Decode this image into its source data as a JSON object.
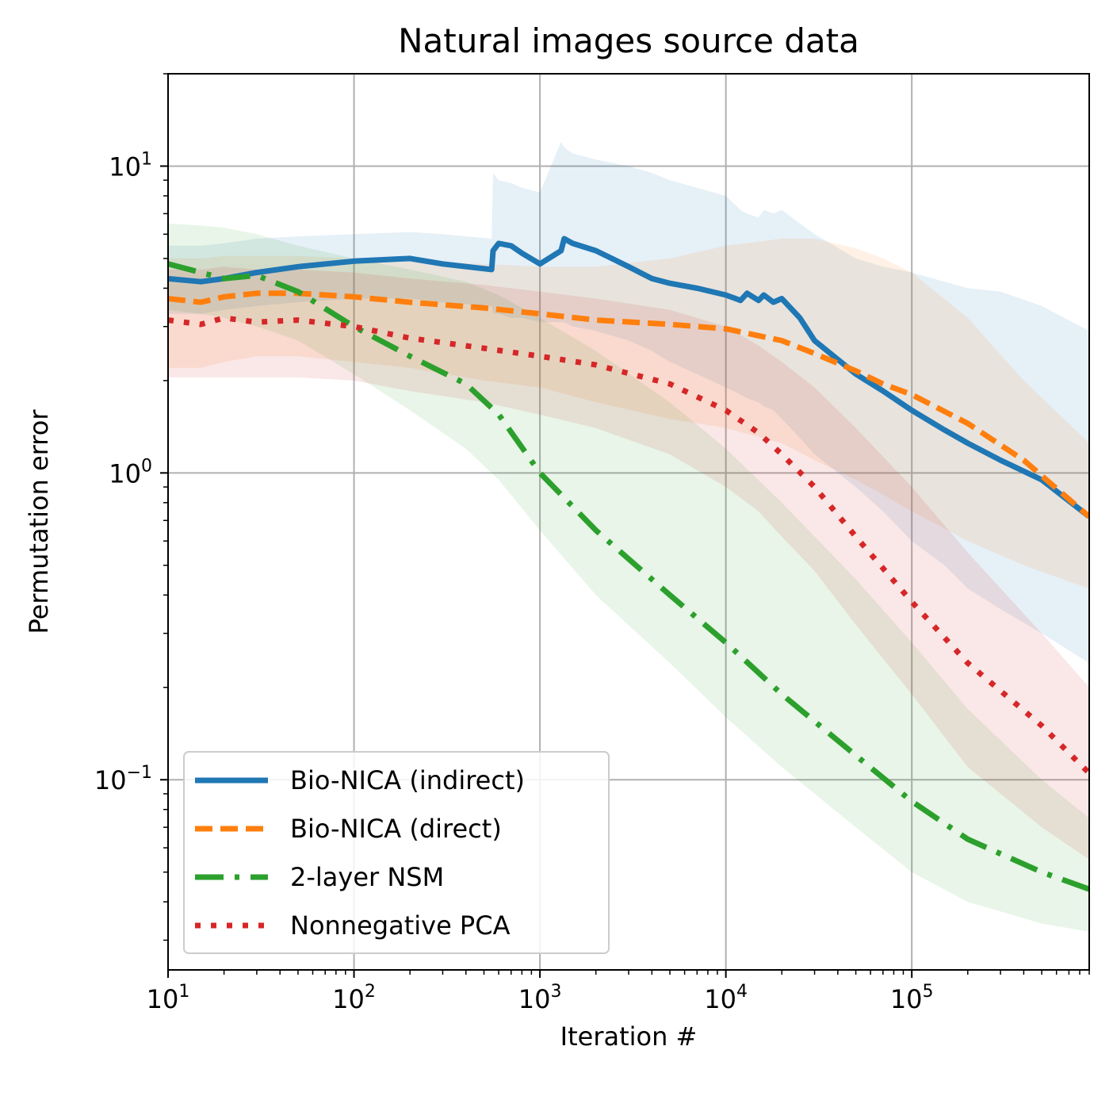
{
  "chart_data": {
    "type": "line",
    "title": "Natural images source data",
    "xlabel": "Iteration #",
    "ylabel": "Permutation error",
    "xscale": "log",
    "yscale": "log",
    "xlim": [
      10,
      900000
    ],
    "ylim": [
      0.024,
      20
    ],
    "grid": true,
    "legend_position": "lower-left",
    "x_ticks": [
      {
        "base": "10",
        "exp": "1",
        "value": 10
      },
      {
        "base": "10",
        "exp": "2",
        "value": 100
      },
      {
        "base": "10",
        "exp": "3",
        "value": 1000
      },
      {
        "base": "10",
        "exp": "4",
        "value": 10000
      },
      {
        "base": "10",
        "exp": "5",
        "value": 100000
      }
    ],
    "y_ticks": [
      {
        "base": "10",
        "exp": "−1",
        "value": 0.1
      },
      {
        "base": "10",
        "exp": "0",
        "value": 1
      },
      {
        "base": "10",
        "exp": "1",
        "value": 10
      }
    ],
    "series": [
      {
        "name": "Bio-NICA (indirect)",
        "color": "#1f77b4",
        "style": "solid",
        "x": [
          10,
          15,
          20,
          30,
          50,
          100,
          200,
          300,
          550,
          560,
          600,
          700,
          800,
          1000,
          1300,
          1350,
          1500,
          2000,
          3000,
          4000,
          5000,
          7000,
          10000,
          12000,
          13000,
          15000,
          16000,
          18000,
          20000,
          25000,
          30000,
          50000,
          70000,
          100000,
          150000,
          200000,
          300000,
          500000,
          900000
        ],
        "y": [
          4.3,
          4.2,
          4.3,
          4.5,
          4.7,
          4.9,
          5.0,
          4.8,
          4.6,
          5.3,
          5.6,
          5.5,
          5.2,
          4.8,
          5.3,
          5.8,
          5.6,
          5.3,
          4.7,
          4.3,
          4.15,
          4.0,
          3.8,
          3.65,
          3.85,
          3.65,
          3.8,
          3.6,
          3.7,
          3.2,
          2.7,
          2.1,
          1.85,
          1.6,
          1.38,
          1.25,
          1.1,
          0.95,
          0.72
        ],
        "band_upper": [
          5.5,
          5.5,
          5.6,
          5.8,
          5.9,
          6.0,
          6.1,
          6.0,
          5.8,
          9.5,
          9.0,
          8.8,
          8.5,
          8.2,
          12.0,
          11.5,
          11.0,
          10.5,
          10.0,
          9.5,
          9.0,
          8.5,
          8.0,
          7.2,
          7.0,
          6.8,
          7.2,
          7.0,
          7.2,
          6.5,
          6.0,
          5.0,
          4.7,
          4.5,
          4.2,
          4.0,
          3.9,
          3.5,
          2.9
        ],
        "band_lower": [
          3.3,
          3.3,
          3.4,
          3.5,
          3.6,
          3.7,
          3.7,
          3.6,
          3.5,
          3.3,
          3.3,
          3.2,
          3.2,
          3.1,
          3.1,
          3.1,
          3.0,
          2.9,
          2.7,
          2.5,
          2.3,
          2.1,
          1.9,
          1.8,
          1.75,
          1.7,
          1.65,
          1.6,
          1.5,
          1.3,
          1.15,
          0.9,
          0.75,
          0.6,
          0.5,
          0.42,
          0.36,
          0.3,
          0.24
        ]
      },
      {
        "name": "Bio-NICA (direct)",
        "color": "#ff7f0e",
        "style": "dashed",
        "x": [
          10,
          15,
          20,
          30,
          50,
          100,
          200,
          500,
          1000,
          2000,
          5000,
          10000,
          20000,
          30000,
          50000,
          70000,
          100000,
          200000,
          400000,
          900000
        ],
        "y": [
          3.7,
          3.6,
          3.75,
          3.85,
          3.85,
          3.75,
          3.6,
          3.45,
          3.3,
          3.15,
          3.05,
          2.95,
          2.7,
          2.45,
          2.15,
          1.95,
          1.8,
          1.45,
          1.1,
          0.72
        ],
        "band_upper": [
          5.0,
          5.0,
          5.1,
          5.1,
          5.1,
          5.0,
          4.9,
          4.8,
          4.7,
          4.7,
          5.0,
          5.5,
          5.8,
          5.8,
          5.4,
          5.0,
          4.5,
          3.2,
          2.0,
          1.25
        ],
        "band_lower": [
          2.2,
          2.2,
          2.3,
          2.4,
          2.4,
          2.3,
          2.2,
          2.0,
          1.9,
          1.7,
          1.5,
          1.4,
          1.25,
          1.1,
          0.95,
          0.85,
          0.75,
          0.6,
          0.5,
          0.42
        ]
      },
      {
        "name": "2-layer NSM",
        "color": "#2ca02c",
        "style": "dashdot",
        "x": [
          10,
          15,
          20,
          30,
          50,
          100,
          200,
          400,
          600,
          1000,
          2000,
          5000,
          10000,
          20000,
          50000,
          100000,
          200000,
          500000,
          900000
        ],
        "y": [
          4.8,
          4.5,
          4.3,
          4.4,
          3.9,
          3.0,
          2.4,
          1.95,
          1.55,
          1.0,
          0.65,
          0.4,
          0.28,
          0.19,
          0.12,
          0.085,
          0.064,
          0.05,
          0.044
        ],
        "band_upper": [
          6.5,
          6.4,
          6.3,
          6.0,
          5.5,
          5.0,
          4.6,
          4.2,
          3.8,
          3.2,
          2.5,
          1.7,
          1.2,
          0.8,
          0.45,
          0.28,
          0.17,
          0.1,
          0.075
        ],
        "band_lower": [
          3.4,
          3.3,
          3.2,
          3.0,
          2.7,
          2.1,
          1.6,
          1.2,
          0.95,
          0.65,
          0.4,
          0.24,
          0.16,
          0.11,
          0.07,
          0.05,
          0.04,
          0.034,
          0.032
        ]
      },
      {
        "name": "Nonnegative PCA",
        "color": "#d62728",
        "style": "dotted",
        "x": [
          10,
          15,
          20,
          30,
          50,
          100,
          200,
          500,
          1000,
          2000,
          5000,
          10000,
          15000,
          20000,
          30000,
          50000,
          100000,
          200000,
          500000,
          900000
        ],
        "y": [
          3.15,
          3.05,
          3.2,
          3.1,
          3.15,
          3.0,
          2.75,
          2.55,
          2.4,
          2.25,
          1.95,
          1.6,
          1.35,
          1.15,
          0.9,
          0.62,
          0.38,
          0.24,
          0.15,
          0.105
        ],
        "band_upper": [
          4.6,
          4.6,
          4.7,
          4.6,
          4.6,
          4.5,
          4.3,
          4.1,
          3.9,
          3.7,
          3.4,
          3.0,
          2.6,
          2.3,
          1.9,
          1.4,
          0.9,
          0.55,
          0.3,
          0.2
        ],
        "band_lower": [
          2.05,
          2.05,
          2.05,
          2.05,
          2.05,
          2.0,
          1.85,
          1.7,
          1.55,
          1.4,
          1.15,
          0.9,
          0.75,
          0.62,
          0.48,
          0.32,
          0.19,
          0.11,
          0.07,
          0.055
        ]
      }
    ]
  }
}
